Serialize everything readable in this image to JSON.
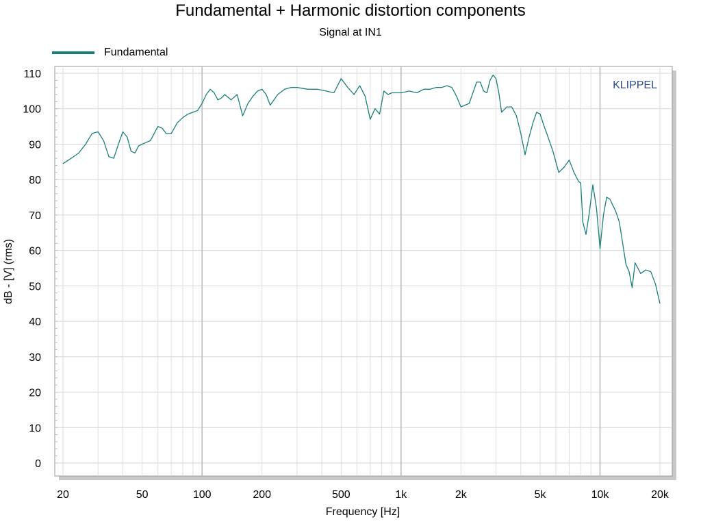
{
  "chart_data": {
    "type": "line",
    "title": "Fundamental + Harmonic distortion components",
    "subtitle": "Signal at IN1",
    "xlabel": "Frequency [Hz]",
    "ylabel": "dB - [V]  (rms)",
    "x_scale": "log",
    "xlim": [
      20,
      20000
    ],
    "ylim": [
      0,
      110
    ],
    "x_ticks": [
      20,
      50,
      100,
      200,
      500,
      1000,
      2000,
      5000,
      10000,
      20000
    ],
    "x_tick_labels": [
      "20",
      "50",
      "100",
      "200",
      "500",
      "1k",
      "2k",
      "5k",
      "10k",
      "20k"
    ],
    "y_ticks": [
      0,
      10,
      20,
      30,
      40,
      50,
      60,
      70,
      80,
      90,
      100,
      110
    ],
    "y_tick_labels": [
      "0",
      "10",
      "20",
      "30",
      "40",
      "50",
      "60",
      "70",
      "80",
      "90",
      "100",
      "110"
    ],
    "grid": true,
    "legend_position": "top-left",
    "watermark": "KLIPPEL",
    "series": [
      {
        "name": "Fundamental",
        "color": "#1a7f7a",
        "x": [
          20,
          22,
          24,
          26,
          28,
          30,
          32,
          34,
          36,
          38,
          40,
          42,
          44,
          46,
          48,
          50,
          55,
          60,
          63,
          66,
          70,
          75,
          80,
          85,
          90,
          95,
          100,
          105,
          110,
          115,
          120,
          125,
          130,
          140,
          150,
          160,
          170,
          180,
          190,
          200,
          210,
          220,
          240,
          260,
          280,
          300,
          340,
          380,
          420,
          460,
          500,
          540,
          580,
          620,
          660,
          700,
          740,
          780,
          820,
          860,
          900,
          950,
          1000,
          1100,
          1200,
          1300,
          1400,
          1500,
          1600,
          1700,
          1800,
          1900,
          2000,
          2200,
          2400,
          2500,
          2600,
          2700,
          2800,
          2900,
          3000,
          3100,
          3200,
          3400,
          3600,
          3800,
          4000,
          4200,
          4400,
          4600,
          4800,
          5000,
          5200,
          5400,
          5800,
          6200,
          6600,
          7000,
          7400,
          7800,
          8000,
          8200,
          8500,
          8800,
          9200,
          9600,
          10000,
          10400,
          10800,
          11200,
          12000,
          12500,
          13000,
          13500,
          14000,
          14500,
          15000,
          16000,
          17000,
          18000,
          19000,
          20000
        ],
        "y": [
          84.5,
          86,
          87.5,
          90,
          93,
          93.5,
          91,
          86.5,
          86,
          90,
          93.5,
          92,
          88,
          87.5,
          89.5,
          90,
          91,
          95,
          94.5,
          93,
          93,
          96,
          97.5,
          98.5,
          99,
          99.5,
          101.5,
          104,
          105.5,
          104.5,
          102.5,
          103,
          104,
          102.5,
          104,
          98,
          101.5,
          103.5,
          105,
          105.5,
          104,
          101,
          104,
          105.5,
          106,
          106,
          105.5,
          105.5,
          105,
          104.5,
          108.5,
          106,
          104,
          106.5,
          103.5,
          97,
          100,
          98.5,
          105,
          104,
          104.5,
          104.5,
          104.5,
          105,
          104.5,
          105.5,
          105.5,
          106,
          106,
          106.5,
          106,
          103.5,
          100.5,
          101.5,
          107.5,
          107.5,
          105,
          104.5,
          108,
          109.5,
          108.5,
          104.5,
          99,
          100.5,
          100.5,
          98,
          93,
          87,
          92,
          96,
          99,
          98.5,
          95.5,
          93,
          88,
          82,
          83.5,
          85.5,
          82,
          79.5,
          79,
          68,
          64.5,
          70,
          78.5,
          72,
          60.5,
          70,
          75,
          74.5,
          71,
          68,
          62,
          56,
          54,
          49.5,
          56.5,
          53.5,
          54.5,
          54,
          50.5,
          45
        ]
      }
    ]
  }
}
